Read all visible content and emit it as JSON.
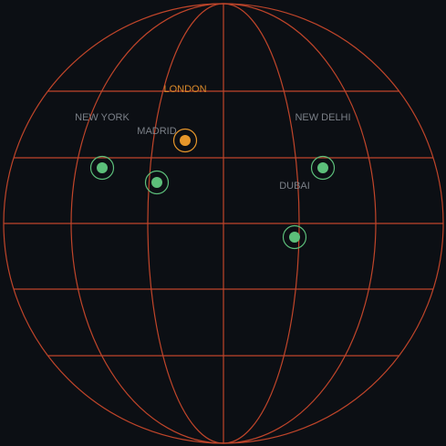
{
  "colors": {
    "background": "#0c0f14",
    "grid": "#c0452a",
    "marker_default": "#5cbf7a",
    "marker_highlight": "#e6962a",
    "label_default": "#7b8088",
    "label_highlight": "#d98a2a"
  },
  "cities": [
    {
      "name": "LONDON",
      "label": "LONDON",
      "highlighted": true,
      "lat": 51.5,
      "lon": -0.1
    },
    {
      "name": "NEW YORK",
      "label": "NEW YORK",
      "highlighted": false,
      "lat": 40.7,
      "lon": -74.0
    },
    {
      "name": "MADRID",
      "label": "MADRID",
      "highlighted": false,
      "lat": 40.4,
      "lon": -3.7
    },
    {
      "name": "NEW DELHI",
      "label": "NEW DELHI",
      "highlighted": false,
      "lat": 28.6,
      "lon": 77.2
    },
    {
      "name": "DUBAI",
      "label": "DUBAI",
      "highlighted": false,
      "lat": 25.2,
      "lon": 55.3
    }
  ]
}
